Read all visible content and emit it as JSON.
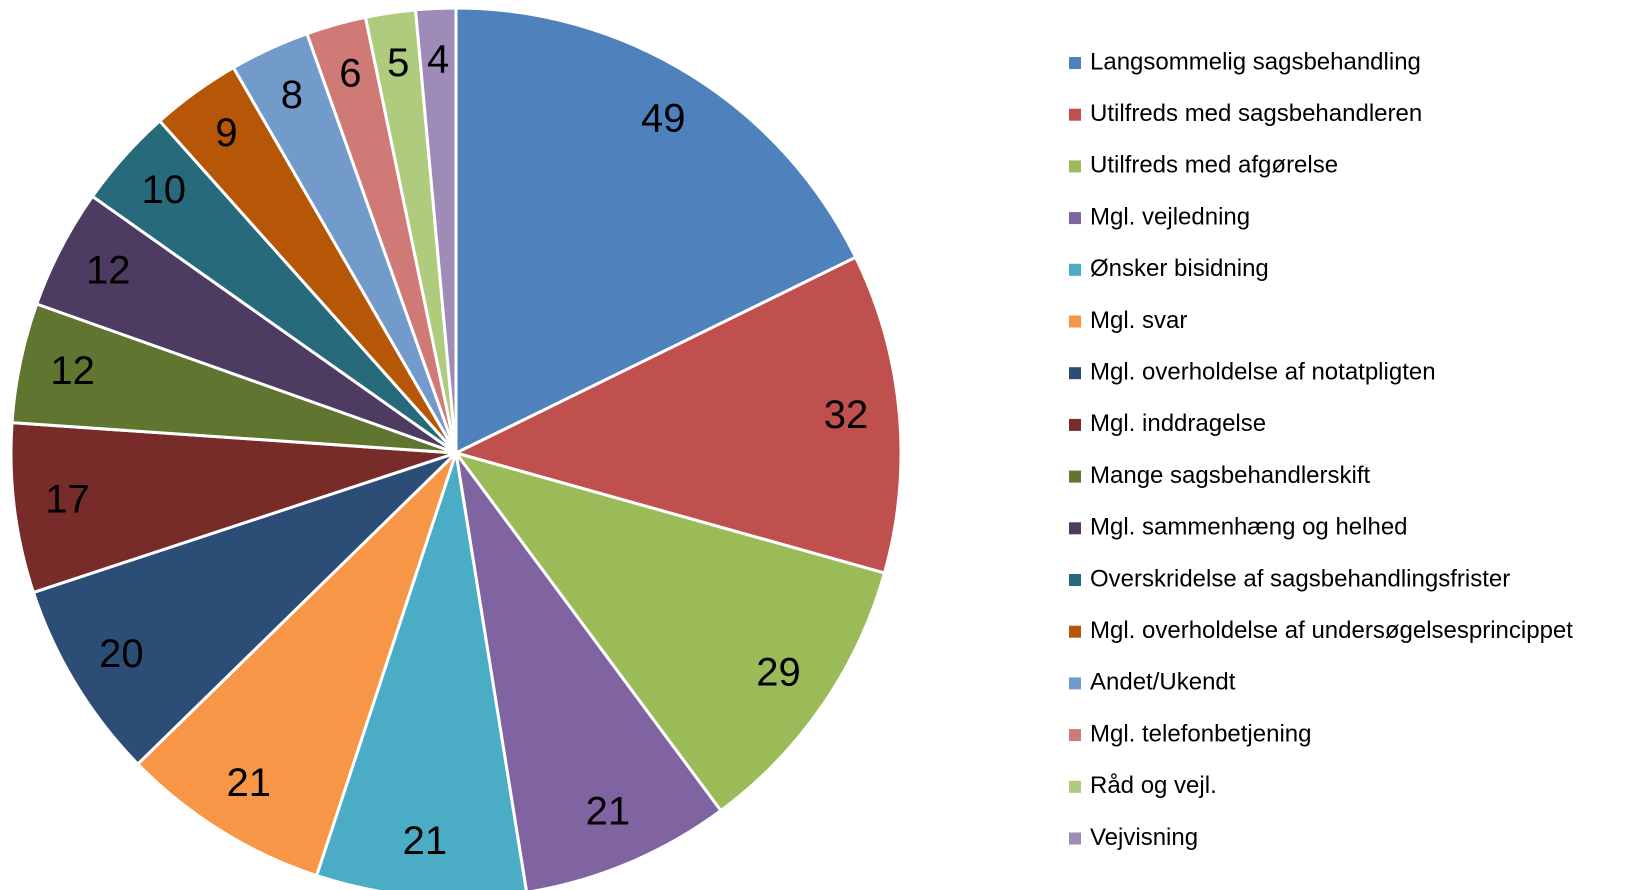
{
  "chart_data": {
    "type": "pie",
    "categories": [
      "Langsommelig sagsbehandling",
      "Utilfreds med sagsbehandleren",
      "Utilfreds med afgørelse",
      "Mgl. vejledning",
      "Ønsker bisidning",
      "Mgl. svar",
      "Mgl. overholdelse af notatpligten",
      "Mgl. inddragelse",
      "Mange sagsbehandlerskift",
      "Mgl. sammenhæng og helhed",
      "Overskridelse af sagsbehandlingsfrister",
      "Mgl. overholdelse af undersøgelsesprincippet",
      "Andet/Ukendt",
      "Mgl. telefonbetjening",
      "Råd og vejl.",
      "Vejvisning"
    ],
    "values": [
      49,
      32,
      29,
      21,
      21,
      21,
      20,
      17,
      12,
      12,
      10,
      9,
      8,
      6,
      5,
      4
    ],
    "colors": [
      "#4f81bd",
      "#c0504d",
      "#9bbb59",
      "#8064a2",
      "#4bacc6",
      "#f79646",
      "#2c4d75",
      "#772c2a",
      "#5f7530",
      "#4d3b62",
      "#276a7c",
      "#b65708",
      "#729aca",
      "#d07a78",
      "#afcb7d",
      "#9e8bb8"
    ],
    "legend": "right"
  }
}
